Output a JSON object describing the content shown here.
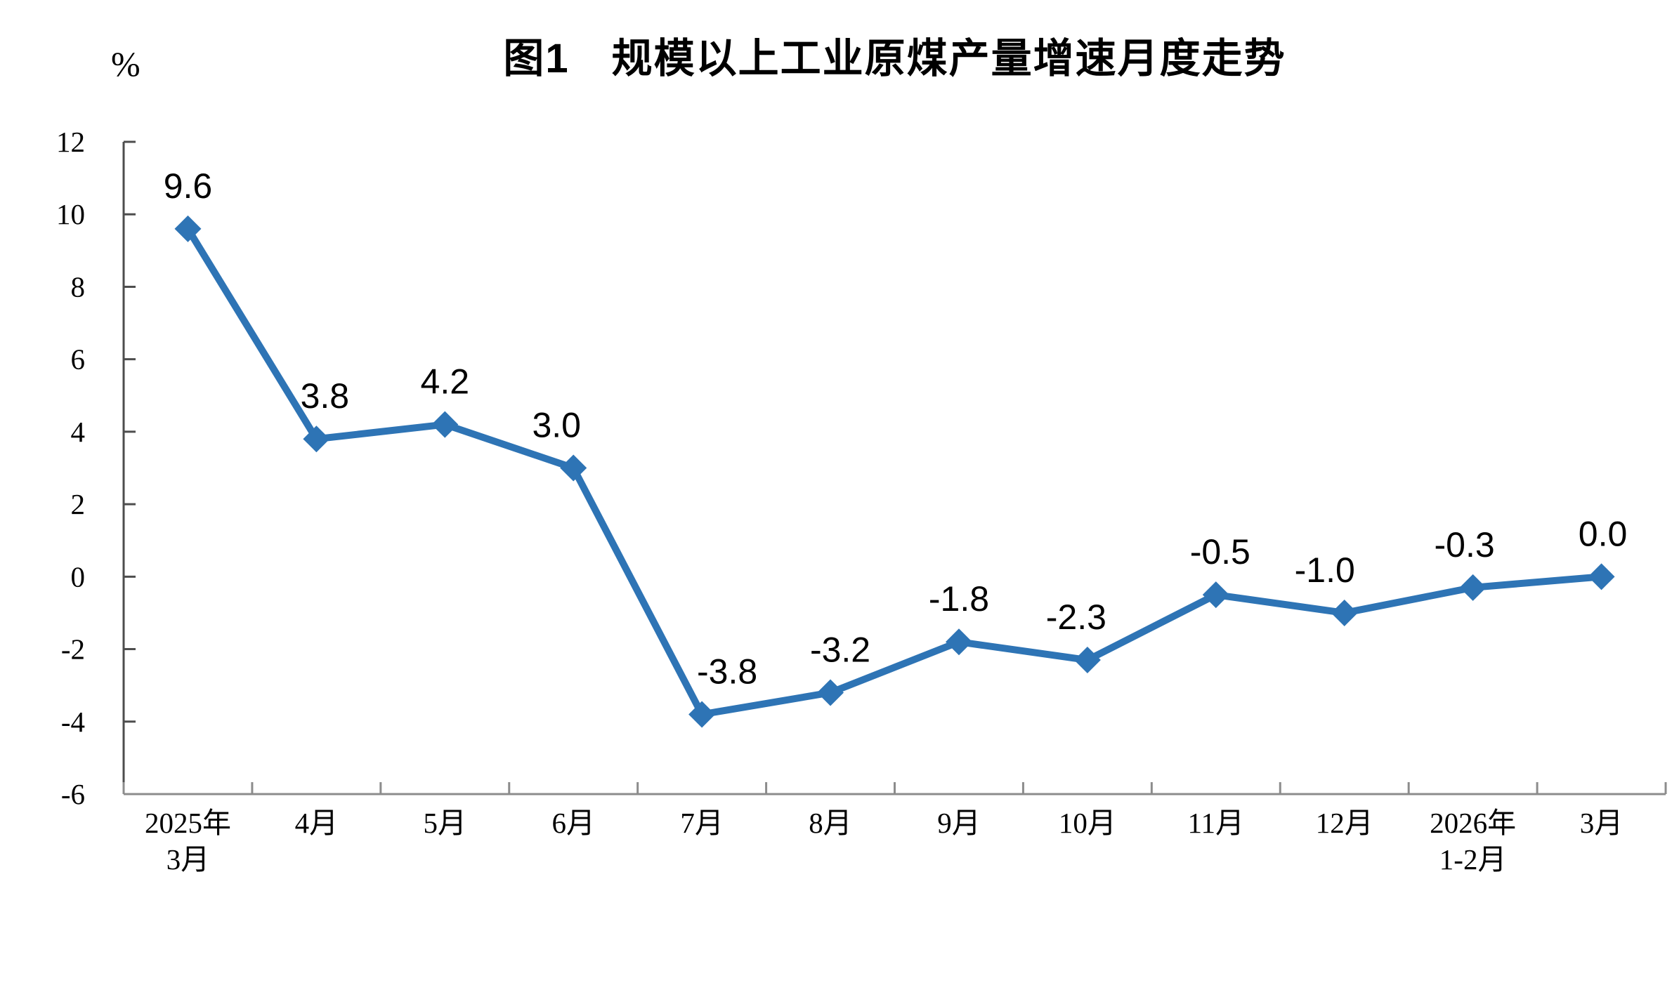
{
  "page": {
    "background": "#ffffff"
  },
  "chart_data": {
    "type": "line",
    "title": "图1　规模以上工业原煤产量增速月度走势",
    "ylabel": "%",
    "xlabel": "",
    "ylim": [
      -6,
      12
    ],
    "ytick_step": 2,
    "ytick_labels": [
      "12",
      "10",
      "8",
      "6",
      "4",
      "2",
      "0",
      "-2",
      "-4",
      "-6"
    ],
    "categories": [
      [
        "2025年",
        "3月"
      ],
      [
        "4月"
      ],
      [
        "5月"
      ],
      [
        "6月"
      ],
      [
        "7月"
      ],
      [
        "8月"
      ],
      [
        "9月"
      ],
      [
        "10月"
      ],
      [
        "11月"
      ],
      [
        "12月"
      ],
      [
        "2026年",
        "1-2月"
      ],
      [
        "3月"
      ]
    ],
    "series": [
      {
        "values": [
          9.6,
          3.8,
          4.2,
          3.0,
          -3.8,
          -3.2,
          -1.8,
          -2.3,
          -0.5,
          -1.0,
          -0.3,
          0.0
        ],
        "point_labels": [
          "9.6",
          "3.8",
          "4.2",
          "3.0",
          "-3.8",
          "-3.2",
          "-1.8",
          "-2.3",
          "-0.5",
          "-1.0",
          "-0.3",
          "0.0"
        ]
      }
    ],
    "line_color": "#2E74B5",
    "marker": "diamond",
    "y_axis_color": "#4D4D4D",
    "x_axis_color": "#8C8C8C",
    "grid": false,
    "legend_position": "none"
  }
}
